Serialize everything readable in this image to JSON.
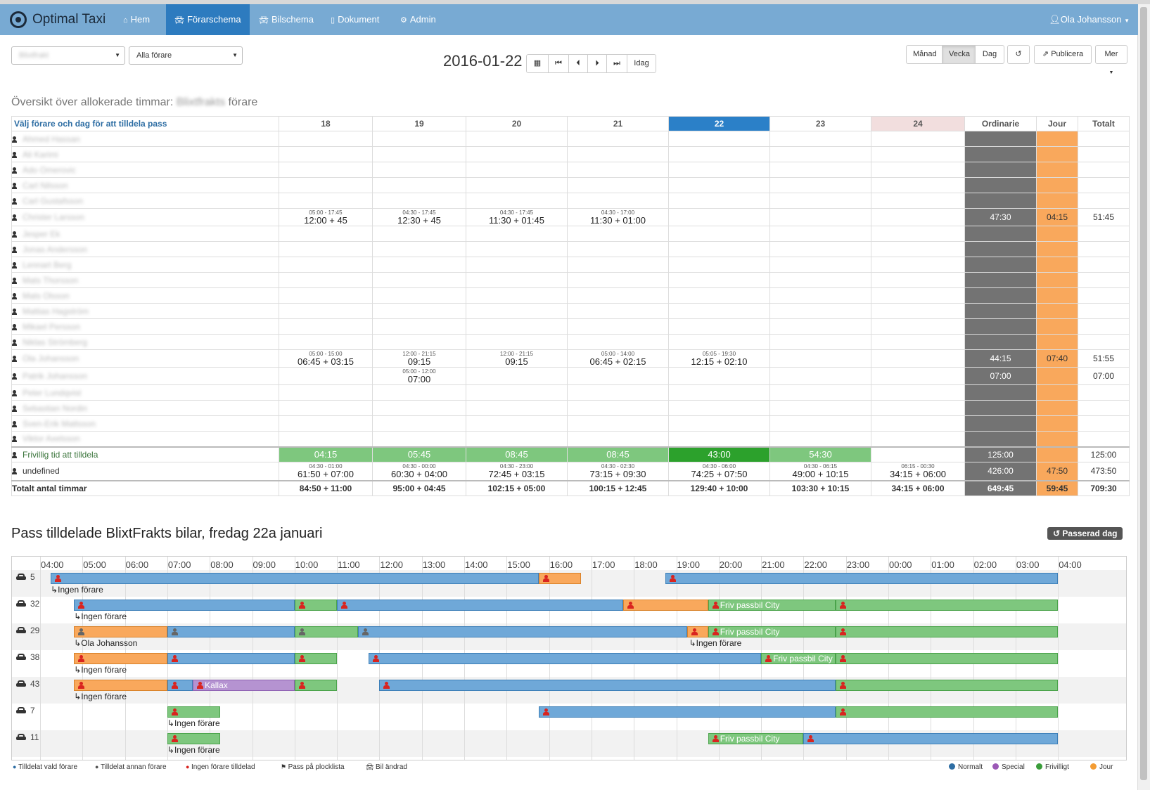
{
  "nav": {
    "brand": "Optimal Taxi",
    "items": [
      {
        "label": "Hem",
        "icon": "home-icon",
        "active": false
      },
      {
        "label": "Förarschema",
        "icon": "car-icon",
        "active": true
      },
      {
        "label": "Bilschema",
        "icon": "car-icon",
        "active": false
      },
      {
        "label": "Dokument",
        "icon": "file-icon",
        "active": false
      },
      {
        "label": "Admin",
        "icon": "gears-icon",
        "active": false
      }
    ],
    "user": "Ola Johansson"
  },
  "controls": {
    "company_select": "Blixtfrakt",
    "driver_select": "Alla förare",
    "date": "2016-01-22",
    "today_btn": "Idag",
    "view_buttons": [
      "Månad",
      "Vecka",
      "Dag"
    ],
    "active_view": "Vecka",
    "publish_btn": "Publicera",
    "more_btn": "Mer"
  },
  "overview": {
    "title_prefix": "Översikt över allokerade timmar",
    "title_company": "Blixtfrakts",
    "title_suffix": "förare",
    "header_left": "Välj förare och dag för att tilldela pass",
    "days": [
      "18",
      "19",
      "20",
      "21",
      "22",
      "23",
      "24"
    ],
    "today_index": 4,
    "weekend_index": 6,
    "col_ordinarie": "Ordinarie",
    "col_jour": "Jour",
    "col_totalt": "Totalt",
    "drivers": [
      {
        "name": "Ahmed Hassan",
        "cells": {},
        "ord": "",
        "jour": "",
        "tot": ""
      },
      {
        "name": "Ali Karimi",
        "cells": {},
        "ord": "",
        "jour": "",
        "tot": ""
      },
      {
        "name": "Ado Omerovic",
        "cells": {},
        "ord": "",
        "jour": "",
        "tot": ""
      },
      {
        "name": "Carl Nilsson",
        "cells": {},
        "ord": "",
        "jour": "",
        "tot": ""
      },
      {
        "name": "Carl Gustafsson",
        "cells": {},
        "ord": "",
        "jour": "",
        "tot": ""
      },
      {
        "name": "Christer Larsson",
        "cells": {
          "0": [
            {
              "time": "05:00 - 17:45",
              "hours": "12:00 + 45"
            }
          ],
          "1": [
            {
              "time": "04:30 - 17:45",
              "hours": "12:30 + 45"
            }
          ],
          "2": [
            {
              "time": "04:30 - 17:45",
              "hours": "11:30 + 01:45"
            }
          ],
          "3": [
            {
              "time": "04:30 - 17:00",
              "hours": "11:30 + 01:00"
            }
          ]
        },
        "ord": "47:30",
        "jour": "04:15",
        "tot": "51:45"
      },
      {
        "name": "Jesper Ek",
        "cells": {},
        "ord": "",
        "jour": "",
        "tot": ""
      },
      {
        "name": "Jonas Andersson",
        "cells": {},
        "ord": "",
        "jour": "",
        "tot": ""
      },
      {
        "name": "Lennart Berg",
        "cells": {},
        "ord": "",
        "jour": "",
        "tot": ""
      },
      {
        "name": "Mats Thorsson",
        "cells": {},
        "ord": "",
        "jour": "",
        "tot": ""
      },
      {
        "name": "Mats Olsson",
        "cells": {},
        "ord": "",
        "jour": "",
        "tot": ""
      },
      {
        "name": "Mattias Hagström",
        "cells": {},
        "ord": "",
        "jour": "",
        "tot": ""
      },
      {
        "name": "Mikael Persson",
        "cells": {},
        "ord": "",
        "jour": "",
        "tot": ""
      },
      {
        "name": "Niklas Strömberg",
        "cells": {},
        "ord": "",
        "jour": "",
        "tot": ""
      },
      {
        "name": "Ola Johansson",
        "cells": {
          "0": [
            {
              "time": "05:00 - 15:00",
              "hours": "06:45 + 03:15"
            }
          ],
          "1": [
            {
              "time": "12:00 - 21:15",
              "hours": "09:15"
            }
          ],
          "2": [
            {
              "time": "12:00 - 21:15",
              "hours": "09:15"
            }
          ],
          "3": [
            {
              "time": "05:00 - 14:00",
              "hours": "06:45 + 02:15"
            }
          ],
          "4": [
            {
              "time": "05:05 - 19:30",
              "hours": "12:15 + 02:10"
            }
          ]
        },
        "ord": "44:15",
        "jour": "07:40",
        "tot": "51:55"
      },
      {
        "name": "Patrik Johansson",
        "cells": {
          "1": [
            {
              "time": "05:00 - 12:00",
              "hours": "07:00"
            }
          ]
        },
        "ord": "07:00",
        "jour": "",
        "tot": "07:00"
      },
      {
        "name": "Peter Lundqvist",
        "cells": {},
        "ord": "",
        "jour": "",
        "tot": ""
      },
      {
        "name": "Sebastian Nordin",
        "cells": {},
        "ord": "",
        "jour": "",
        "tot": ""
      },
      {
        "name": "Sven-Erik Mattsson",
        "cells": {},
        "ord": "",
        "jour": "",
        "tot": ""
      },
      {
        "name": "Viktor Axelsson",
        "cells": {},
        "ord": "",
        "jour": "",
        "tot": ""
      }
    ],
    "voluntary": {
      "label": "Frivillig tid att tilldela",
      "values": [
        "04:15",
        "05:45",
        "08:45",
        "08:45",
        "43:00",
        "54:30",
        ""
      ],
      "ord": "125:00",
      "jour": "",
      "tot": "125:00"
    },
    "undefined_row": {
      "label": "undefined",
      "cells": [
        {
          "time": "04:30 - 01:00",
          "hours": "61:50 + 07:00"
        },
        {
          "time": "04:30 - 00:00",
          "hours": "60:30 + 04:00"
        },
        {
          "time": "04:30 - 23:00",
          "hours": "72:45 + 03:15"
        },
        {
          "time": "04:30 - 02:30",
          "hours": "73:15 + 09:30"
        },
        {
          "time": "04:30 - 06:00",
          "hours": "74:25 + 07:50"
        },
        {
          "time": "04:30 - 06:15",
          "hours": "49:00 + 10:15"
        },
        {
          "time": "06:15 - 00:30",
          "hours": "34:15 + 06:00"
        }
      ],
      "ord": "426:00",
      "jour": "47:50",
      "tot": "473:50"
    },
    "totals": {
      "label": "Totalt antal timmar",
      "values": [
        "84:50 + 11:00",
        "95:00 + 04:45",
        "102:15 + 05:00",
        "100:15 + 12:45",
        "129:40 + 10:00",
        "103:30 + 10:15",
        "34:15 + 06:00"
      ],
      "ord": "649:45",
      "jour": "59:45",
      "tot": "709:30"
    }
  },
  "pass": {
    "title": "Pass tilldelade BlixtFrakts bilar, fredag 22a januari",
    "passed_day": "Passerad dag",
    "hours": [
      "04:00",
      "05:00",
      "06:00",
      "07:00",
      "08:00",
      "09:00",
      "10:00",
      "11:00",
      "12:00",
      "13:00",
      "14:00",
      "15:00",
      "16:00",
      "17:00",
      "18:00",
      "19:00",
      "20:00",
      "21:00",
      "22:00",
      "23:00",
      "00:00",
      "01:00",
      "02:00",
      "03:00",
      "04:00"
    ],
    "cars": [
      {
        "id": "5",
        "driver_note": "↳Ingen förare",
        "note_start": 4.25,
        "bars": [
          {
            "start": 4.25,
            "end": 15.75,
            "color": "blue",
            "label": ""
          },
          {
            "start": 15.75,
            "end": 16.75,
            "color": "orange",
            "label": ""
          },
          {
            "start": 18.75,
            "end": 28.0,
            "color": "blue",
            "label": ""
          }
        ]
      },
      {
        "id": "32",
        "driver_note": "↳Ingen förare",
        "note_start": 4.8,
        "bars": [
          {
            "start": 4.8,
            "end": 10.0,
            "color": "blue",
            "label": ""
          },
          {
            "start": 10.0,
            "end": 11.0,
            "color": "green",
            "label": ""
          },
          {
            "start": 11.0,
            "end": 17.75,
            "color": "blue",
            "label": ""
          },
          {
            "start": 17.75,
            "end": 19.75,
            "color": "orange",
            "label": ""
          },
          {
            "start": 19.75,
            "end": 22.75,
            "color": "green",
            "label": "Friv passbil City"
          },
          {
            "start": 22.75,
            "end": 28.0,
            "color": "green",
            "label": ""
          }
        ]
      },
      {
        "id": "29",
        "driver_note": "↳Ola Johansson",
        "note_start": 4.8,
        "driver_note2": "↳Ingen förare",
        "note2_start": 19.3,
        "grey": true,
        "bars": [
          {
            "start": 4.8,
            "end": 7.0,
            "color": "orange",
            "label": "",
            "grey": true
          },
          {
            "start": 7.0,
            "end": 10.0,
            "color": "blue",
            "label": "",
            "grey": true
          },
          {
            "start": 10.0,
            "end": 11.5,
            "color": "green",
            "label": "",
            "grey": true
          },
          {
            "start": 11.5,
            "end": 19.25,
            "color": "blue",
            "label": "",
            "grey": true
          },
          {
            "start": 19.25,
            "end": 19.75,
            "color": "orange",
            "label": ""
          },
          {
            "start": 19.75,
            "end": 22.75,
            "color": "green",
            "label": "Friv passbil City"
          },
          {
            "start": 22.75,
            "end": 28.0,
            "color": "green",
            "label": ""
          }
        ]
      },
      {
        "id": "38",
        "driver_note": "↳Ingen förare",
        "note_start": 4.8,
        "bars": [
          {
            "start": 4.8,
            "end": 7.0,
            "color": "orange",
            "label": ""
          },
          {
            "start": 7.0,
            "end": 10.0,
            "color": "blue",
            "label": ""
          },
          {
            "start": 10.0,
            "end": 11.0,
            "color": "green",
            "label": ""
          },
          {
            "start": 11.75,
            "end": 21.0,
            "color": "blue",
            "label": ""
          },
          {
            "start": 21.0,
            "end": 22.75,
            "color": "green",
            "label": "Friv passbil City"
          },
          {
            "start": 22.75,
            "end": 28.0,
            "color": "green",
            "label": ""
          }
        ]
      },
      {
        "id": "43",
        "driver_note": "↳Ingen förare",
        "note_start": 4.8,
        "bars": [
          {
            "start": 4.8,
            "end": 7.0,
            "color": "orange",
            "label": ""
          },
          {
            "start": 7.0,
            "end": 7.6,
            "color": "blue",
            "label": ""
          },
          {
            "start": 7.6,
            "end": 10.0,
            "color": "purple",
            "label": "Kallax"
          },
          {
            "start": 10.0,
            "end": 11.0,
            "color": "green",
            "label": ""
          },
          {
            "start": 12.0,
            "end": 22.75,
            "color": "blue",
            "label": ""
          },
          {
            "start": 22.75,
            "end": 28.0,
            "color": "green",
            "label": ""
          }
        ]
      },
      {
        "id": "7",
        "driver_note": "↳Ingen förare",
        "note_start": 7.0,
        "bars": [
          {
            "start": 7.0,
            "end": 8.25,
            "color": "green",
            "label": ""
          },
          {
            "start": 15.75,
            "end": 22.75,
            "color": "blue",
            "label": ""
          },
          {
            "start": 22.75,
            "end": 28.0,
            "color": "green",
            "label": ""
          }
        ]
      },
      {
        "id": "11",
        "driver_note": "↳Ingen förare",
        "note_start": 7.0,
        "bars": [
          {
            "start": 7.0,
            "end": 8.25,
            "color": "green",
            "label": ""
          },
          {
            "start": 19.75,
            "end": 22.0,
            "color": "green",
            "label": "Friv passbil City"
          },
          {
            "start": 22.0,
            "end": 28.0,
            "color": "blue",
            "label": ""
          }
        ]
      }
    ]
  },
  "legend": {
    "left": [
      {
        "label": "Tilldelat vald förare",
        "icon": "person-blue-icon"
      },
      {
        "label": "Tilldelat annan förare",
        "icon": "person-grey-icon"
      },
      {
        "label": "Ingen förare tilldelad",
        "icon": "person-red-icon"
      },
      {
        "label": "Pass på plocklista",
        "icon": "flag-icon"
      },
      {
        "label": "Bil ändrad",
        "icon": "car-icon"
      }
    ],
    "right": [
      {
        "label": "Normalt",
        "color": "#2d6da3"
      },
      {
        "label": "Special",
        "color": "#9b59b6"
      },
      {
        "label": "Frivilligt",
        "color": "#3a9d3a"
      },
      {
        "label": "Jour",
        "color": "#f39c33"
      }
    ]
  }
}
